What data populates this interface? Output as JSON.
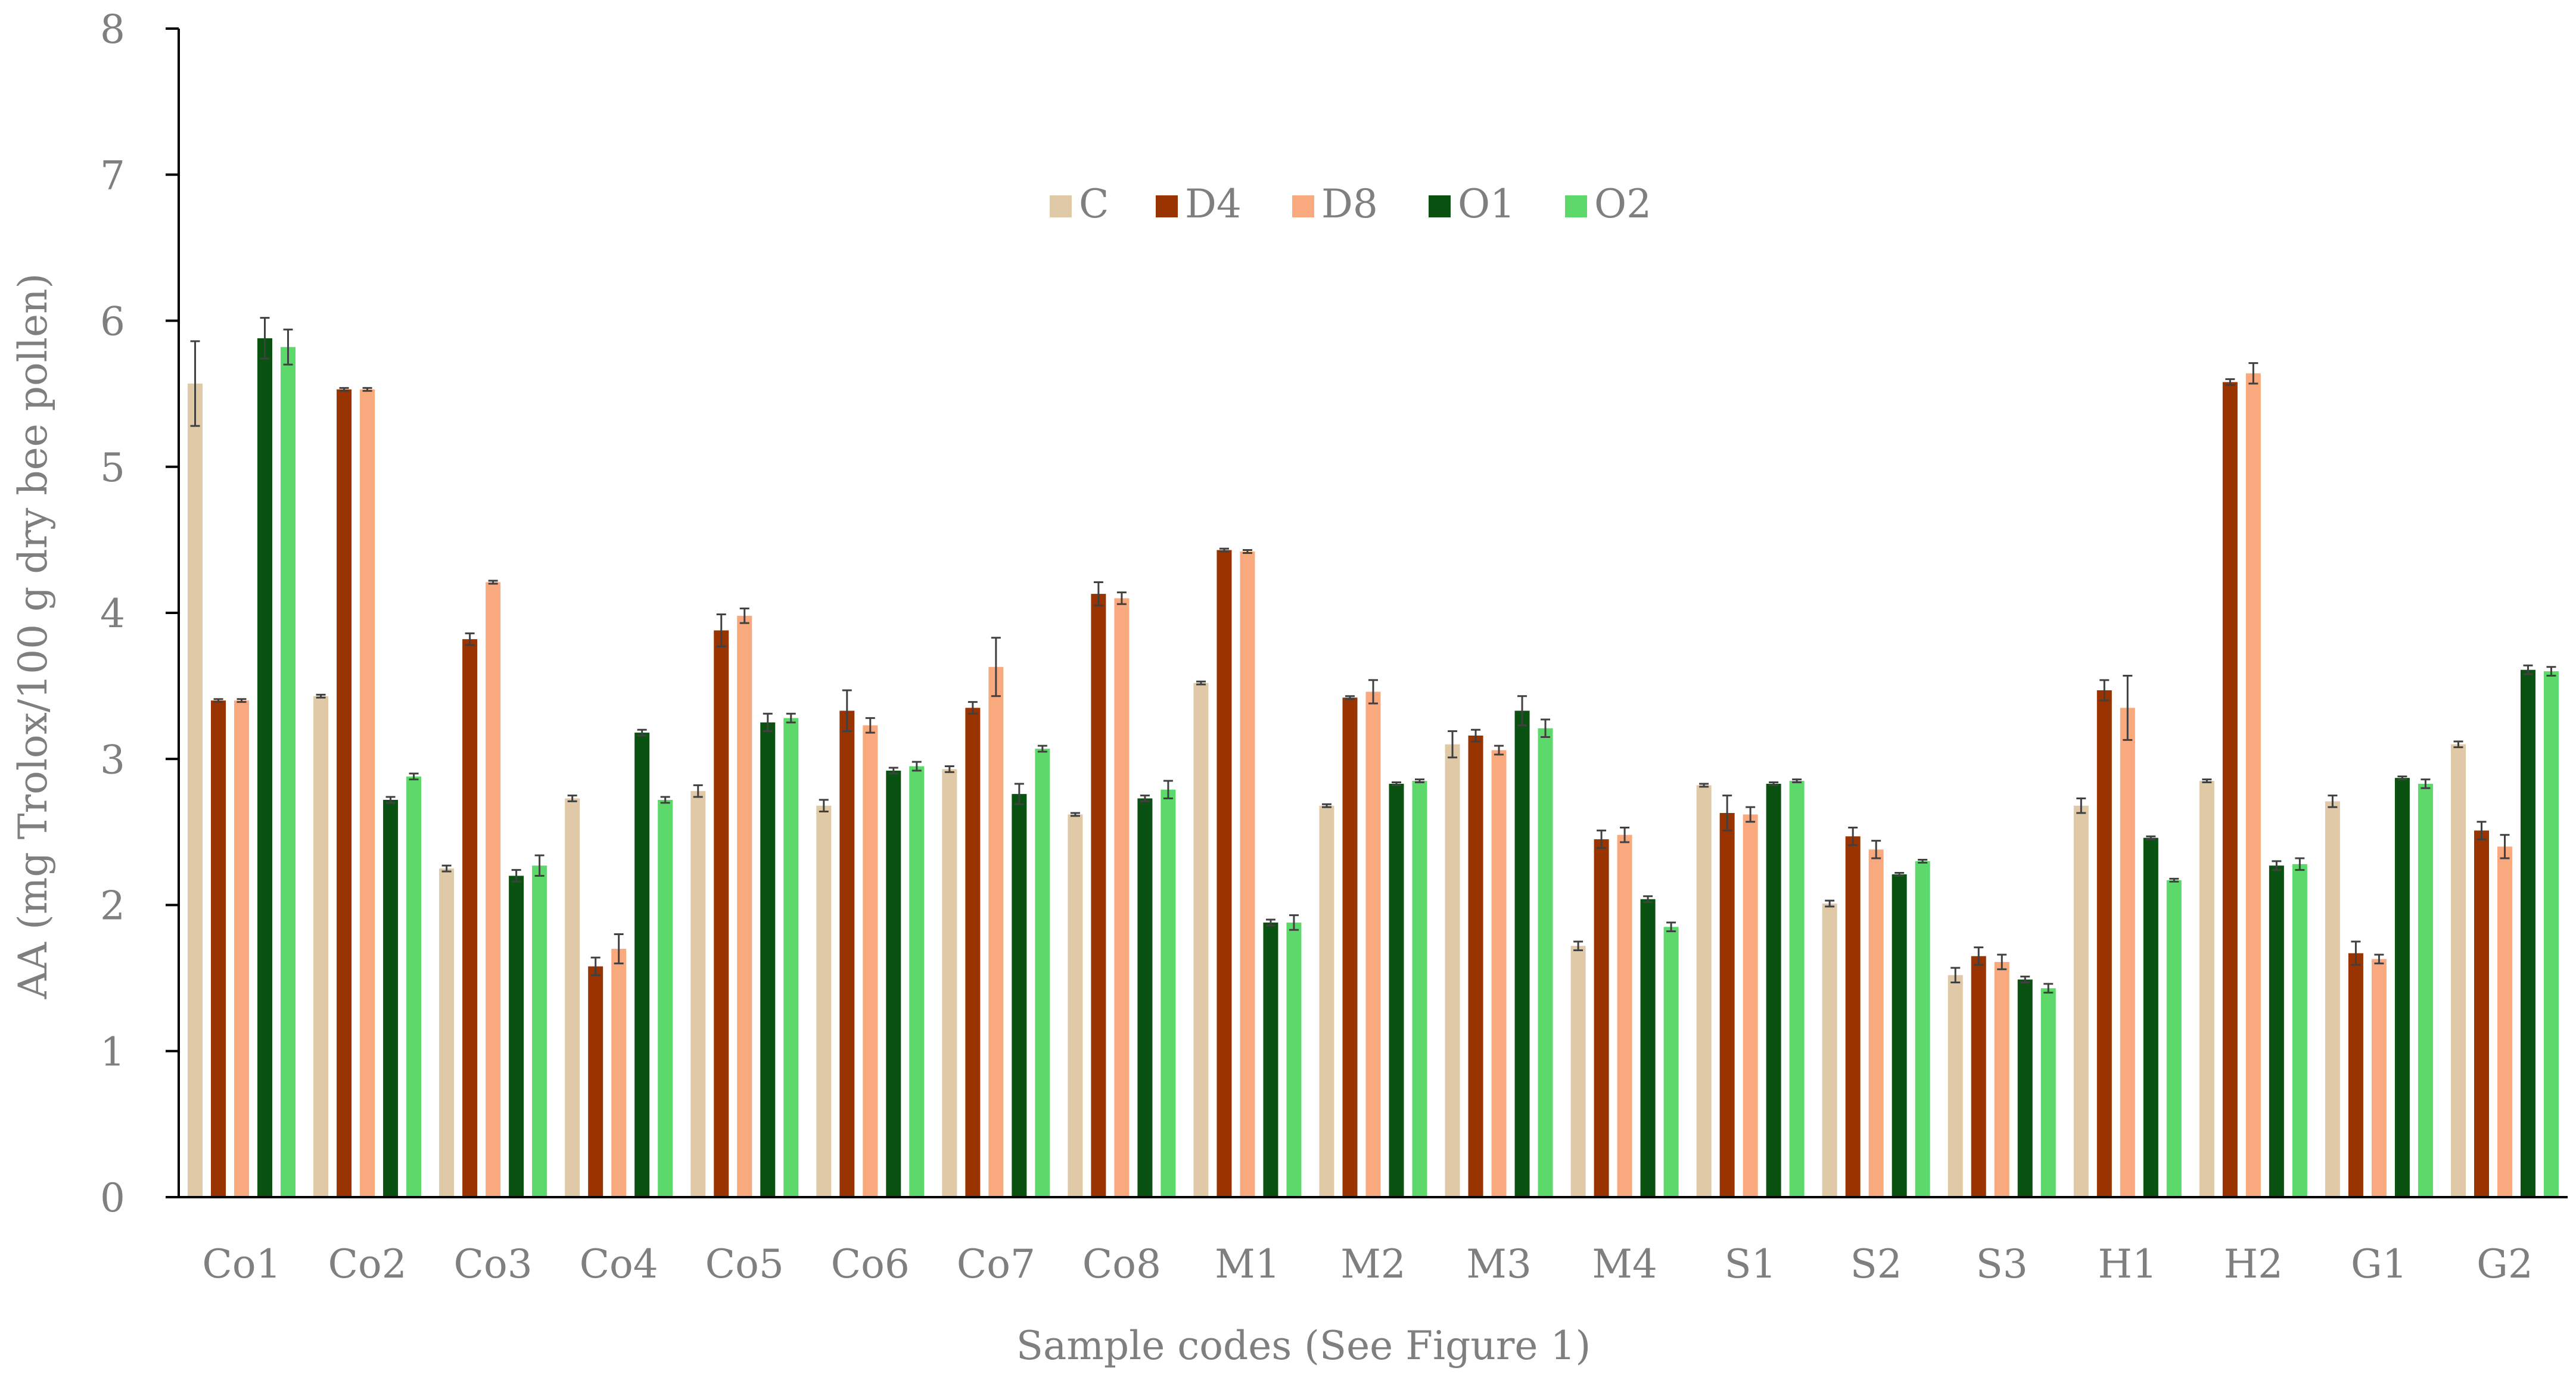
{
  "chart_data": {
    "type": "bar",
    "xlabel": "Sample codes (See Figure 1)",
    "ylabel": "AA (mg Trolox/100 g dry bee pollen)",
    "ylim": [
      0,
      8
    ],
    "yticks": [
      0,
      1,
      2,
      3,
      4,
      5,
      6,
      7,
      8
    ],
    "grid": false,
    "legend_position": "top-center",
    "categories": [
      "Co1",
      "Co2",
      "Co3",
      "Co4",
      "Co5",
      "Co6",
      "Co7",
      "Co8",
      "M1",
      "M2",
      "M3",
      "M4",
      "S1",
      "S2",
      "S3",
      "H1",
      "H2",
      "G1",
      "G2"
    ],
    "series": [
      {
        "name": "C",
        "color": "#e0c9a6",
        "values": [
          5.57,
          3.43,
          2.25,
          2.73,
          2.78,
          2.68,
          2.93,
          2.62,
          3.52,
          2.68,
          3.1,
          1.72,
          2.82,
          2.01,
          1.52,
          2.68,
          2.85,
          2.71,
          3.1
        ],
        "errors": [
          0.29,
          0.01,
          0.02,
          0.02,
          0.04,
          0.04,
          0.02,
          0.01,
          0.01,
          0.01,
          0.09,
          0.03,
          0.01,
          0.02,
          0.05,
          0.05,
          0.01,
          0.04,
          0.02
        ]
      },
      {
        "name": "D4",
        "color": "#993300",
        "values": [
          3.4,
          5.53,
          3.82,
          1.58,
          3.88,
          3.33,
          3.35,
          4.13,
          4.43,
          3.42,
          3.16,
          2.45,
          2.63,
          2.47,
          1.65,
          3.47,
          5.58,
          1.67,
          2.51
        ],
        "errors": [
          0.01,
          0.01,
          0.04,
          0.06,
          0.11,
          0.14,
          0.04,
          0.08,
          0.01,
          0.01,
          0.04,
          0.06,
          0.12,
          0.06,
          0.06,
          0.07,
          0.02,
          0.08,
          0.06
        ]
      },
      {
        "name": "D8",
        "color": "#f9a97e",
        "values": [
          3.4,
          5.53,
          4.21,
          1.7,
          3.98,
          3.23,
          3.63,
          4.1,
          4.42,
          3.46,
          3.06,
          2.48,
          2.62,
          2.38,
          1.61,
          3.35,
          5.64,
          1.63,
          2.4
        ],
        "errors": [
          0.01,
          0.01,
          0.01,
          0.1,
          0.05,
          0.05,
          0.2,
          0.04,
          0.01,
          0.08,
          0.03,
          0.05,
          0.05,
          0.06,
          0.05,
          0.22,
          0.07,
          0.03,
          0.08
        ]
      },
      {
        "name": "O1",
        "color": "#0a5211",
        "values": [
          5.88,
          2.72,
          2.2,
          3.18,
          3.25,
          2.92,
          2.76,
          2.73,
          1.88,
          2.83,
          3.33,
          2.04,
          2.83,
          2.21,
          1.49,
          2.46,
          2.27,
          2.87,
          3.61
        ],
        "errors": [
          0.14,
          0.02,
          0.04,
          0.02,
          0.06,
          0.02,
          0.07,
          0.02,
          0.02,
          0.01,
          0.1,
          0.02,
          0.01,
          0.01,
          0.02,
          0.01,
          0.03,
          0.01,
          0.03
        ]
      },
      {
        "name": "O2",
        "color": "#5cd96a",
        "values": [
          5.82,
          2.88,
          2.27,
          2.72,
          3.28,
          2.95,
          3.07,
          2.79,
          1.88,
          2.85,
          3.21,
          1.85,
          2.85,
          2.3,
          1.43,
          2.17,
          2.28,
          2.83,
          3.6
        ],
        "errors": [
          0.12,
          0.02,
          0.07,
          0.02,
          0.03,
          0.03,
          0.02,
          0.06,
          0.05,
          0.01,
          0.06,
          0.03,
          0.01,
          0.01,
          0.03,
          0.01,
          0.04,
          0.03,
          0.03
        ]
      }
    ]
  }
}
